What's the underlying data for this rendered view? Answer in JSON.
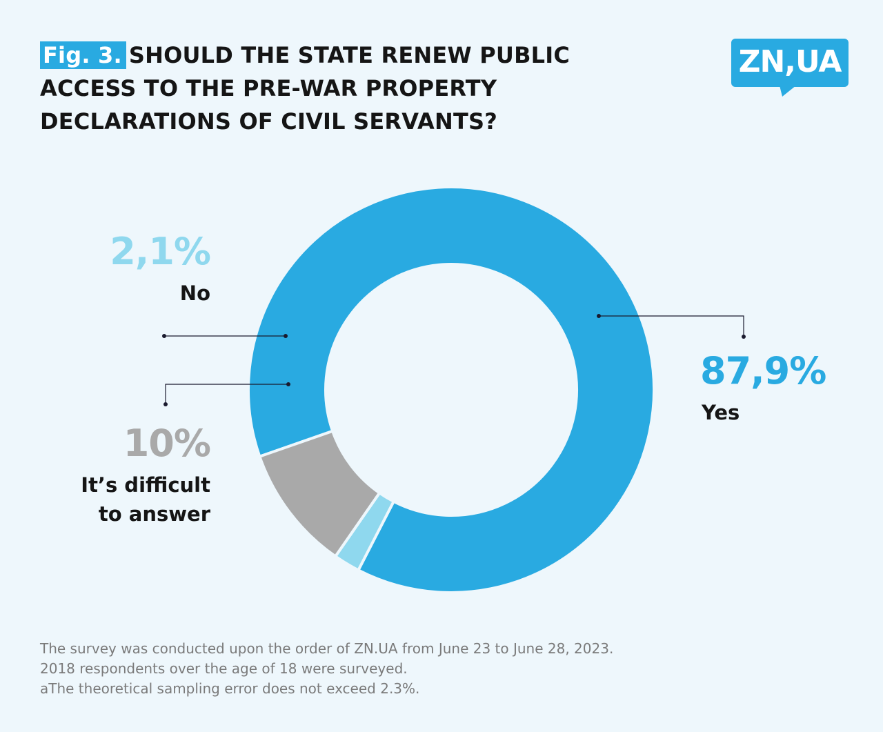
{
  "header": {
    "fig_label": "Fig. 3.",
    "title_lines": [
      "SHOULD THE STATE RENEW PUBLIC",
      "ACCESS TO THE PRE-WAR PROPERTY",
      "DECLARATIONS OF CIVIL SERVANTS?"
    ]
  },
  "logo": {
    "text": "ZN,UA"
  },
  "chart_data": {
    "type": "pie",
    "style": "donut",
    "title": "SHOULD THE STATE RENEW PUBLIC ACCESS TO THE PRE-WAR PROPERTY DECLARATIONS OF CIVIL SERVANTS?",
    "slices": [
      {
        "label": "Yes",
        "value": 87.9,
        "value_label": "87,9%",
        "color": "#29aae1"
      },
      {
        "label": "No",
        "value": 2.1,
        "value_label": "2,1%",
        "color": "#8fd8ee"
      },
      {
        "label": "It’s difficult to answer",
        "value": 10,
        "value_label": "10%",
        "color": "#a9a9a9",
        "label_lines": [
          "It’s difficult",
          "to answer"
        ]
      }
    ],
    "colors": {
      "accent": "#29aae1",
      "leader_line": "#1a1a2e",
      "background": "#eef7fc"
    }
  },
  "footnote": {
    "lines": [
      "The survey was conducted upon the order of ZN.UA from June 23 to June 28, 2023.",
      "2018 respondents over the age of 18 were surveyed.",
      "aThe theoretical sampling error does not exceed 2.3%."
    ]
  }
}
